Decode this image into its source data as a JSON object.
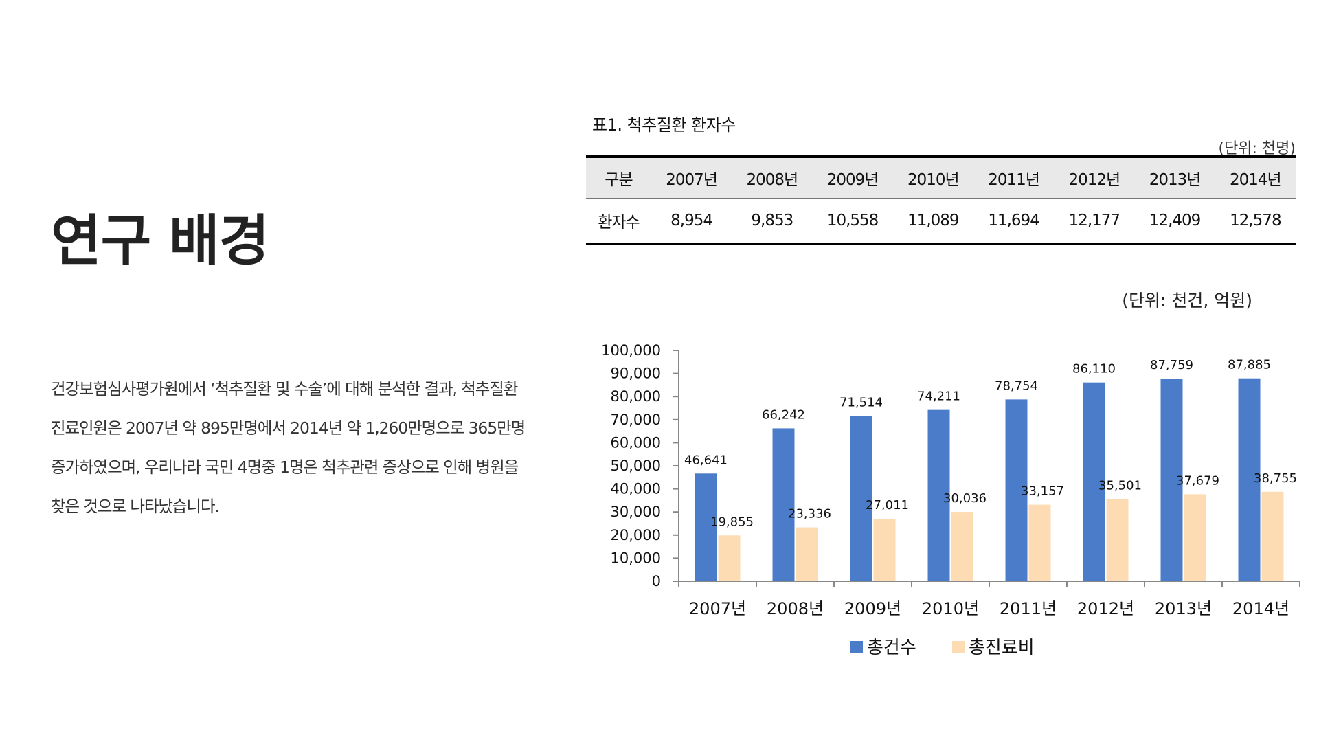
{
  "heading": "연구 배경",
  "body_lines": [
    "건강보험심사평가원에서 ‘척추질환 및 수술’에 대해 분석한 결과, 척추질환",
    "진료인원은 2007년 약 895만명에서 2014년 약 1,260만명으로 365만명",
    "증가하였으며, 우리나라 국민 4명중 1명은 척추관련 증상으로 인해 병원을",
    "찾은 것으로 나타났습니다."
  ],
  "table": {
    "caption": "표1. 척추질환 환자수",
    "unit": "(단위: 천명)",
    "header": [
      "구분",
      "2007년",
      "2008년",
      "2009년",
      "2010년",
      "2011년",
      "2012년",
      "2013년",
      "2014년"
    ],
    "row": [
      "환자수",
      "8,954",
      "9,853",
      "10,558",
      "11,089",
      "11,694",
      "12,177",
      "12,409",
      "12,578"
    ]
  },
  "chart_unit": "(단위: 천건, 억원)",
  "chart_data": {
    "type": "bar",
    "categories": [
      "2007년",
      "2008년",
      "2009년",
      "2010년",
      "2011년",
      "2012년",
      "2013년",
      "2014년"
    ],
    "series": [
      {
        "name": "총건수",
        "color": "#4A7CC9",
        "values": [
          46641,
          66242,
          71514,
          74211,
          78754,
          86110,
          87759,
          87885
        ],
        "labels": [
          "46,641",
          "66,242",
          "71,514",
          "74,211",
          "78,754",
          "86,110",
          "87,759",
          "87,885"
        ]
      },
      {
        "name": "총진료비",
        "color": "#FDDCB3",
        "values": [
          19855,
          23336,
          27011,
          30036,
          33157,
          35501,
          37679,
          38755
        ],
        "labels": [
          "19,855",
          "23,336",
          "27,011",
          "30,036",
          "33,157",
          "35,501",
          "37,679",
          "38,755"
        ]
      }
    ],
    "ylim": [
      0,
      100000
    ],
    "yticks": [
      "0",
      "10,000",
      "20,000",
      "30,000",
      "40,000",
      "50,000",
      "60,000",
      "70,000",
      "80,000",
      "90,000",
      "100,000"
    ],
    "legend": "bottom"
  }
}
